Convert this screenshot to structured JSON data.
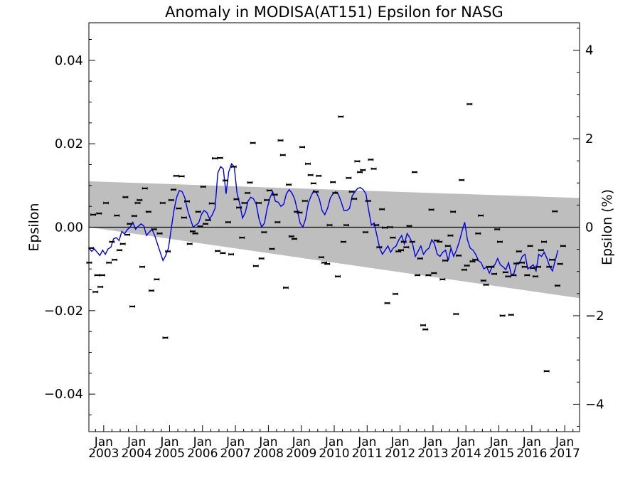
{
  "chart_data": {
    "type": "scatter",
    "title": "Anomaly in MODISA(AT151) Epsilon for NASG",
    "ylabel": "Epsilon",
    "y2label": "Epsilon (%)",
    "xlabel": "",
    "xlim": [
      2002.55,
      2017.45
    ],
    "ylim": [
      -0.049,
      0.049
    ],
    "y2lim": [
      -4.62,
      4.62
    ],
    "yticks": [
      -0.04,
      -0.02,
      0.0,
      0.02,
      0.04
    ],
    "ytick_labels": [
      "−0.04",
      "−0.02",
      "0.00",
      "0.02",
      "0.04"
    ],
    "y2ticks": [
      -4,
      -2,
      0,
      2,
      4
    ],
    "y2tick_labels": [
      "−4",
      "−2",
      "0",
      "2",
      "4"
    ],
    "xticks": [
      {
        "month": "Jan",
        "year": "2003",
        "x": 2003.0
      },
      {
        "month": "Jan",
        "year": "2004",
        "x": 2004.0
      },
      {
        "month": "Jan",
        "year": "2005",
        "x": 2005.0
      },
      {
        "month": "Jan",
        "year": "2006",
        "x": 2006.0
      },
      {
        "month": "Jan",
        "year": "2007",
        "x": 2007.0
      },
      {
        "month": "Jan",
        "year": "2008",
        "x": 2008.0
      },
      {
        "month": "Jan",
        "year": "2009",
        "x": 2009.0
      },
      {
        "month": "Jan",
        "year": "2010",
        "x": 2010.0
      },
      {
        "month": "Jan",
        "year": "2011",
        "x": 2011.0
      },
      {
        "month": "Jan",
        "year": "2012",
        "x": 2012.0
      },
      {
        "month": "Jan",
        "year": "2013",
        "x": 2013.0
      },
      {
        "month": "Jan",
        "year": "2014",
        "x": 2014.0
      },
      {
        "month": "Jan",
        "year": "2015",
        "x": 2015.0
      },
      {
        "month": "Jan",
        "year": "2016",
        "x": 2016.0
      },
      {
        "month": "Jan",
        "year": "2017",
        "x": 2017.0
      }
    ],
    "band": {
      "color": "#bebebe",
      "start": {
        "x": 2002.55,
        "upper": 0.011,
        "lower": 0.0
      },
      "end": {
        "x": 2017.45,
        "upper": 0.007,
        "lower": -0.017
      }
    },
    "zero_line": true,
    "grid": false,
    "legend": "none",
    "series": [
      {
        "kind": "points_with_errorbars",
        "color": "#000000",
        "points": [
          [
            2002.56,
            -0.0085
          ],
          [
            2002.62,
            -0.005
          ],
          [
            2002.68,
            0.003
          ],
          [
            2002.75,
            -0.0155
          ],
          [
            2002.8,
            -0.0115
          ],
          [
            2002.86,
            0.0033
          ],
          [
            2002.9,
            -0.0143
          ],
          [
            2002.96,
            -0.0115
          ],
          [
            2003.07,
            0.0058
          ],
          [
            2003.16,
            -0.0085
          ],
          [
            2003.25,
            -0.0035
          ],
          [
            2003.33,
            -0.0078
          ],
          [
            2003.4,
            0.0028
          ],
          [
            2003.48,
            -0.0055
          ],
          [
            2003.58,
            -0.004
          ],
          [
            2003.66,
            0.0072
          ],
          [
            2003.72,
            -0.0018
          ],
          [
            2003.79,
            0.0008
          ],
          [
            2003.87,
            -0.019
          ],
          [
            2003.93,
            0.0027
          ],
          [
            2004.03,
            0.0058
          ],
          [
            2004.09,
            0.0065
          ],
          [
            2004.17,
            -0.0095
          ],
          [
            2004.25,
            0.0093
          ],
          [
            2004.36,
            0.0037
          ],
          [
            2004.45,
            -0.0152
          ],
          [
            2004.53,
            -0.0005
          ],
          [
            2004.61,
            -0.0125
          ],
          [
            2004.7,
            -0.0015
          ],
          [
            2004.79,
            0.0058
          ],
          [
            2004.87,
            -0.0265
          ],
          [
            2004.95,
            -0.0058
          ],
          [
            2005.05,
            0.0065
          ],
          [
            2005.12,
            0.009
          ],
          [
            2005.2,
            0.0123
          ],
          [
            2005.28,
            0.0045
          ],
          [
            2005.37,
            0.0122
          ],
          [
            2005.44,
            0.0023
          ],
          [
            2005.53,
            0.0062
          ],
          [
            2005.61,
            -0.004
          ],
          [
            2005.7,
            -0.001
          ],
          [
            2005.78,
            -0.0015
          ],
          [
            2005.87,
            0.0037
          ],
          [
            2005.93,
            0.0002
          ],
          [
            2006.02,
            0.0097
          ],
          [
            2006.09,
            0.0008
          ],
          [
            2006.17,
            0.0017
          ],
          [
            2006.28,
            0.0057
          ],
          [
            2006.37,
            0.0165
          ],
          [
            2006.46,
            -0.0057
          ],
          [
            2006.54,
            0.0166
          ],
          [
            2006.62,
            -0.0062
          ],
          [
            2006.7,
            0.0112
          ],
          [
            2006.78,
            0.0012
          ],
          [
            2006.87,
            -0.0065
          ],
          [
            2006.95,
            0.0145
          ],
          [
            2007.03,
            0.0067
          ],
          [
            2007.11,
            0.0047
          ],
          [
            2007.2,
            -0.0025
          ],
          [
            2007.27,
            0.0058
          ],
          [
            2007.37,
            0.0082
          ],
          [
            2007.44,
            0.0107
          ],
          [
            2007.53,
            0.0202
          ],
          [
            2007.62,
            -0.0093
          ],
          [
            2007.71,
            0.0058
          ],
          [
            2007.79,
            -0.0075
          ],
          [
            2007.87,
            -0.0012
          ],
          [
            2007.95,
            0.0065
          ],
          [
            2008.03,
            0.0088
          ],
          [
            2008.11,
            -0.0052
          ],
          [
            2008.2,
            0.0078
          ],
          [
            2008.28,
            0.0012
          ],
          [
            2008.37,
            0.0208
          ],
          [
            2008.44,
            0.0173
          ],
          [
            2008.53,
            -0.0145
          ],
          [
            2008.62,
            0.0102
          ],
          [
            2008.7,
            -0.0022
          ],
          [
            2008.79,
            -0.0028
          ],
          [
            2008.86,
            0.0037
          ],
          [
            2008.95,
            0.0035
          ],
          [
            2009.03,
            0.0192
          ],
          [
            2009.11,
            0.0063
          ],
          [
            2009.2,
            0.0152
          ],
          [
            2009.28,
            0.0125
          ],
          [
            2009.37,
            0.0105
          ],
          [
            2009.44,
            0.0085
          ],
          [
            2009.53,
            0.0123
          ],
          [
            2009.61,
            -0.0072
          ],
          [
            2009.7,
            -0.0085
          ],
          [
            2009.79,
            -0.0088
          ],
          [
            2009.86,
            0.0005
          ],
          [
            2009.96,
            0.0108
          ],
          [
            2010.03,
            0.0082
          ],
          [
            2010.11,
            -0.0118
          ],
          [
            2010.2,
            0.0265
          ],
          [
            2010.28,
            -0.0035
          ],
          [
            2010.37,
            0.0005
          ],
          [
            2010.44,
            0.0118
          ],
          [
            2010.53,
            0.0085
          ],
          [
            2010.61,
            0.0068
          ],
          [
            2010.7,
            0.0158
          ],
          [
            2010.78,
            0.0132
          ],
          [
            2010.87,
            0.0137
          ],
          [
            2010.95,
            -0.0012
          ],
          [
            2011.03,
            0.0063
          ],
          [
            2011.11,
            0.0162
          ],
          [
            2011.2,
            0.014
          ],
          [
            2011.28,
            0.0005
          ],
          [
            2011.37,
            -0.0048
          ],
          [
            2011.45,
            0.0043
          ],
          [
            2011.53,
            -0.0001
          ],
          [
            2011.61,
            -0.0182
          ],
          [
            2011.7,
            0.0
          ],
          [
            2011.78,
            -0.0025
          ],
          [
            2011.86,
            -0.016
          ],
          [
            2011.95,
            -0.0058
          ],
          [
            2012.03,
            -0.0055
          ],
          [
            2012.11,
            -0.0035
          ],
          [
            2012.19,
            -0.0048
          ],
          [
            2012.28,
            0.0003
          ],
          [
            2012.37,
            -0.0035
          ],
          [
            2012.44,
            0.0132
          ],
          [
            2012.53,
            -0.0115
          ],
          [
            2012.61,
            -0.0075
          ],
          [
            2012.7,
            -0.0235
          ],
          [
            2012.77,
            -0.0245
          ],
          [
            2012.86,
            -0.0115
          ],
          [
            2012.95,
            0.0042
          ],
          [
            2013.03,
            -0.011
          ],
          [
            2013.11,
            -0.0032
          ],
          [
            2013.2,
            -0.0035
          ],
          [
            2013.29,
            -0.0125
          ],
          [
            2013.37,
            -0.008
          ],
          [
            2013.45,
            -0.0045
          ],
          [
            2013.53,
            -0.002
          ],
          [
            2013.61,
            0.0037
          ],
          [
            2013.7,
            -0.0208
          ],
          [
            2013.78,
            -0.0068
          ],
          [
            2013.87,
            0.0113
          ],
          [
            2013.95,
            -0.0102
          ],
          [
            2014.03,
            -0.0092
          ],
          [
            2014.11,
            0.0295
          ],
          [
            2014.2,
            -0.0082
          ],
          [
            2014.28,
            -0.0078
          ],
          [
            2014.37,
            -0.0015
          ],
          [
            2014.45,
            0.0028
          ],
          [
            2014.53,
            -0.0128
          ],
          [
            2014.61,
            -0.0138
          ],
          [
            2014.7,
            -0.0095
          ],
          [
            2014.78,
            -0.0095
          ],
          [
            2014.86,
            -0.0112
          ],
          [
            2014.95,
            -0.0005
          ],
          [
            2015.03,
            -0.0035
          ],
          [
            2015.11,
            -0.0212
          ],
          [
            2015.2,
            -0.0108
          ],
          [
            2015.28,
            -0.0118
          ],
          [
            2015.37,
            -0.021
          ],
          [
            2015.45,
            -0.0115
          ],
          [
            2015.53,
            -0.0087
          ],
          [
            2015.61,
            -0.0058
          ],
          [
            2015.7,
            -0.0085
          ],
          [
            2015.78,
            -0.0095
          ],
          [
            2015.86,
            -0.0115
          ],
          [
            2015.95,
            -0.0045
          ],
          [
            2016.03,
            -0.0098
          ],
          [
            2016.11,
            -0.0118
          ],
          [
            2016.2,
            -0.0095
          ],
          [
            2016.28,
            -0.0055
          ],
          [
            2016.37,
            -0.0035
          ],
          [
            2016.45,
            -0.0345
          ],
          [
            2016.53,
            -0.0095
          ],
          [
            2016.61,
            -0.0078
          ],
          [
            2016.7,
            0.0038
          ],
          [
            2016.78,
            -0.014
          ],
          [
            2016.86,
            -0.0088
          ],
          [
            2016.95,
            -0.0045
          ]
        ]
      },
      {
        "kind": "line",
        "color": "#0000e0",
        "x_start": 2002.55,
        "x_step": 0.0833,
        "values": [
          -0.005,
          -0.0058,
          -0.0052,
          -0.006,
          -0.0068,
          -0.0055,
          -0.0065,
          -0.0052,
          -0.0048,
          -0.0028,
          -0.0025,
          -0.0032,
          -0.001,
          -0.0016,
          -0.0006,
          0.0,
          0.0012,
          -0.0005,
          0.0002,
          0.0008,
          0.0003,
          -0.002,
          -0.0012,
          -0.0005,
          -0.002,
          -0.004,
          -0.006,
          -0.008,
          -0.0068,
          -0.005,
          -0.0005,
          0.004,
          0.0072,
          0.0088,
          0.0085,
          0.007,
          0.004,
          0.002,
          0.0,
          0.0005,
          0.001,
          0.003,
          0.004,
          0.0035,
          0.002,
          0.003,
          0.0045,
          0.013,
          0.0145,
          0.014,
          0.008,
          0.0133,
          0.0152,
          0.0145,
          0.0082,
          0.0055,
          0.0022,
          0.0035,
          0.0062,
          0.0072,
          0.0068,
          0.0055,
          0.002,
          0.0,
          0.001,
          0.0045,
          0.007,
          0.0085,
          0.0062,
          0.006,
          0.005,
          0.0055,
          0.008,
          0.009,
          0.0082,
          0.0068,
          0.004,
          0.001,
          0.0,
          0.002,
          0.0058,
          0.0075,
          0.0088,
          0.0082,
          0.0068,
          0.004,
          0.003,
          0.0045,
          0.007,
          0.008,
          0.0085,
          0.0078,
          0.006,
          0.004,
          0.004,
          0.0045,
          0.0075,
          0.0085,
          0.0093,
          0.0095,
          0.009,
          0.008,
          0.004,
          0.0005,
          0.001,
          -0.002,
          -0.005,
          -0.0065,
          -0.0055,
          -0.0045,
          -0.006,
          -0.005,
          -0.0045,
          -0.003,
          -0.002,
          -0.004,
          -0.0015,
          -0.0025,
          -0.004,
          -0.007,
          -0.0058,
          -0.0045,
          -0.0065,
          -0.0055,
          -0.005,
          -0.003,
          -0.004,
          -0.0065,
          -0.007,
          -0.006,
          -0.0055,
          -0.008,
          -0.005,
          -0.007,
          -0.0055,
          -0.0035,
          -0.001,
          0.0012,
          -0.003,
          -0.005,
          -0.0055,
          -0.0065,
          -0.008,
          -0.0085,
          -0.01,
          -0.0095,
          -0.011,
          -0.0095,
          -0.009,
          -0.0075,
          -0.009,
          -0.0095,
          -0.0102,
          -0.0085,
          -0.0115,
          -0.011,
          -0.0085,
          -0.0085,
          -0.007,
          -0.0065,
          -0.01,
          -0.0095,
          -0.009,
          -0.0105,
          -0.0065,
          -0.007,
          -0.006,
          -0.0075,
          -0.0095,
          -0.0105,
          -0.008,
          -0.0055
        ]
      }
    ]
  }
}
